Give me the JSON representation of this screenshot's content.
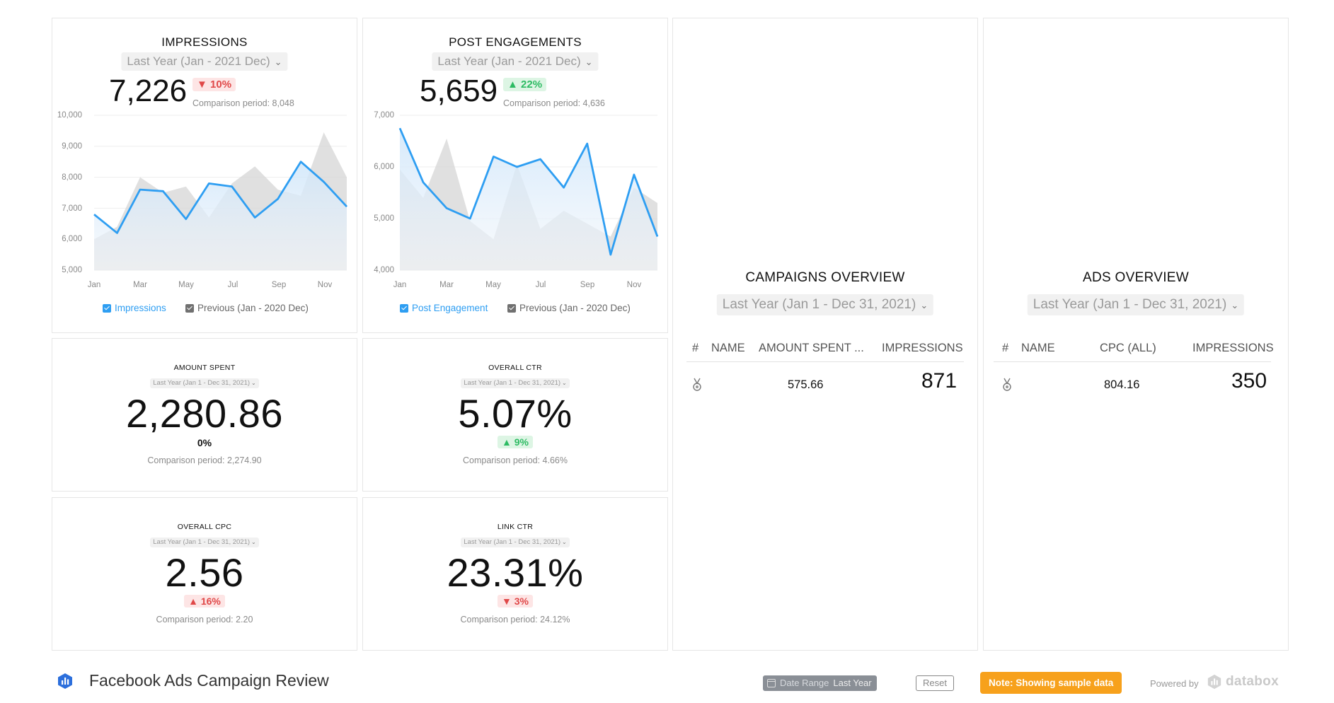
{
  "impressions": {
    "title": "IMPRESSIONS",
    "range": "Last Year (Jan - 2021 Dec)",
    "value": "7,226",
    "delta": "▼ 10%",
    "comparison": "Comparison period: 8,048",
    "y_ticks": [
      "10,000",
      "9,000",
      "8,000",
      "7,000",
      "6,000",
      "5,000"
    ],
    "x_ticks": [
      "Jan",
      "Mar",
      "May",
      "Jul",
      "Sep",
      "Nov"
    ],
    "legend_current": "Impressions",
    "legend_previous": "Previous (Jan - 2020 Dec)"
  },
  "post_engagements": {
    "title": "POST ENGAGEMENTS",
    "range": "Last Year (Jan - 2021 Dec)",
    "value": "5,659",
    "delta": "▲ 22%",
    "comparison": "Comparison period: 4,636",
    "y_ticks": [
      "7,000",
      "6,000",
      "5,000",
      "4,000"
    ],
    "x_ticks": [
      "Jan",
      "Mar",
      "May",
      "Jul",
      "Sep",
      "Nov"
    ],
    "legend_current": "Post Engagement",
    "legend_previous": "Previous (Jan - 2020 Dec)"
  },
  "chart_data": [
    {
      "type": "area",
      "title": "IMPRESSIONS",
      "x": [
        "Jan",
        "Feb",
        "Mar",
        "Apr",
        "May",
        "Jun",
        "Jul",
        "Aug",
        "Sep",
        "Oct",
        "Nov",
        "Dec"
      ],
      "ylim": [
        5000,
        10000
      ],
      "series": [
        {
          "name": "Impressions",
          "values": [
            6800,
            6200,
            7600,
            7550,
            6650,
            7800,
            7700,
            6700,
            7300,
            8500,
            7850,
            7050
          ]
        },
        {
          "name": "Previous (Jan - 2020 Dec)",
          "values": [
            6000,
            6400,
            8000,
            7500,
            7700,
            6700,
            7800,
            8350,
            7600,
            7400,
            9450,
            8000
          ]
        }
      ]
    },
    {
      "type": "area",
      "title": "POST ENGAGEMENTS",
      "x": [
        "Jan",
        "Feb",
        "Mar",
        "Apr",
        "May",
        "Jun",
        "Jul",
        "Aug",
        "Sep",
        "Oct",
        "Nov",
        "Dec"
      ],
      "ylim": [
        4000,
        7000
      ],
      "series": [
        {
          "name": "Post Engagement",
          "values": [
            6750,
            5700,
            5200,
            5000,
            6200,
            6000,
            6150,
            5600,
            6450,
            4300,
            5850,
            4650
          ]
        },
        {
          "name": "Previous (Jan - 2020 Dec)",
          "values": [
            5950,
            5400,
            6550,
            4950,
            4600,
            6050,
            4800,
            5150,
            4900,
            4650,
            5600,
            5300
          ]
        }
      ]
    }
  ],
  "kpis": {
    "amount_spent": {
      "title": "AMOUNT SPENT",
      "range": "Last Year (Jan 1 - Dec 31, 2021)",
      "value": "2,280.86",
      "delta": "0%",
      "comparison": "Comparison period: 2,274.90"
    },
    "overall_ctr": {
      "title": "OVERALL CTR",
      "range": "Last Year (Jan 1 - Dec 31, 2021)",
      "value": "5.07%",
      "delta": "▲ 9%",
      "comparison": "Comparison period: 4.66%"
    },
    "overall_cpc": {
      "title": "OVERALL CPC",
      "range": "Last Year (Jan 1 - Dec 31, 2021)",
      "value": "2.56",
      "delta": "▲ 16%",
      "comparison": "Comparison period: 2.20"
    },
    "link_ctr": {
      "title": "LINK CTR",
      "range": "Last Year (Jan 1 - Dec 31, 2021)",
      "value": "23.31%",
      "delta": "▼ 3%",
      "comparison": "Comparison period: 24.12%"
    }
  },
  "campaigns": {
    "title": "CAMPAIGNS OVERVIEW",
    "range": "Last Year (Jan 1 - Dec 31, 2021)",
    "columns": [
      "#",
      "NAME",
      "AMOUNT SPENT ...",
      "IMPRESSIONS"
    ],
    "row": {
      "metric": "575.66",
      "value": "871"
    }
  },
  "ads": {
    "title": "ADS OVERVIEW",
    "range": "Last Year (Jan 1 - Dec 31, 2021)",
    "columns": [
      "#",
      "NAME",
      "CPC (ALL)",
      "IMPRESSIONS"
    ],
    "row": {
      "metric": "804.16",
      "value": "350"
    }
  },
  "footer": {
    "dashboard_title": "Facebook Ads Campaign Review",
    "date_range_label": "Date Range",
    "date_range_value": "Last Year",
    "reset": "Reset",
    "note": "Note: Showing sample data",
    "powered_by": "Powered by",
    "brand": "databox"
  },
  "colors": {
    "accent_blue": "#2e9ef2",
    "previous_gray": "#d4d4d4",
    "up_green": "#2dbb63",
    "down_red": "#e04848",
    "note_orange": "#f7a11c"
  }
}
